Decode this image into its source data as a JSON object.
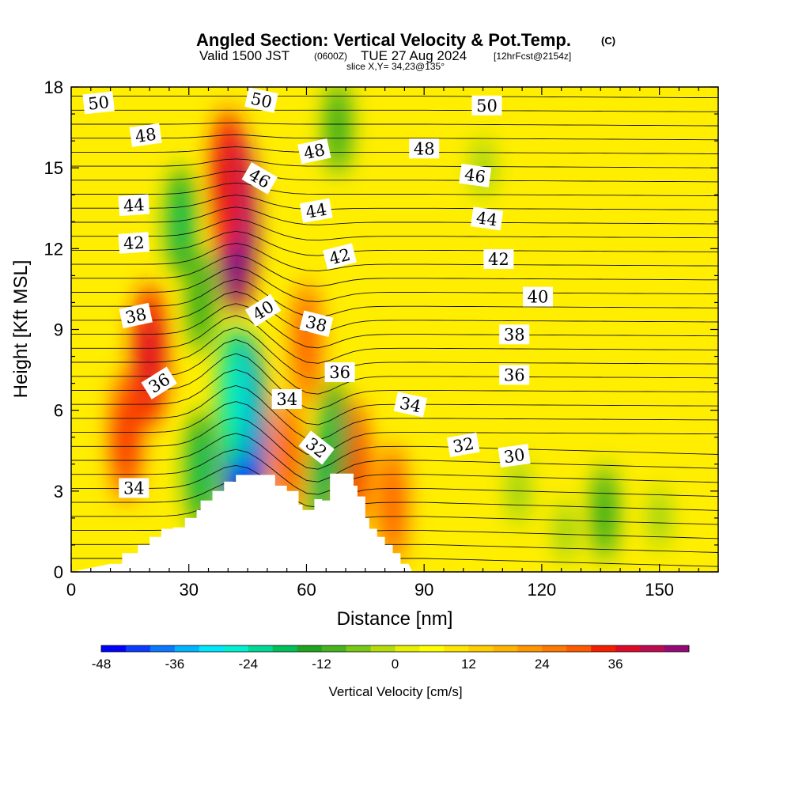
{
  "header": {
    "title": "Angled Section: Vertical Velocity & Pot.Temp.",
    "copyright": "(C)",
    "valid_prefix": "Valid 1500 JST",
    "valid_utc": "(0600Z)",
    "valid_date": "TUE 27 Aug 2024",
    "forecast": "[12hrFcst@2154z]",
    "slice": "slice X,Y= 34,23@135°"
  },
  "chart_data": {
    "type": "heatmap",
    "title": "Angled Section: Vertical Velocity & Pot.Temp.",
    "xlabel": "Distance [nm]",
    "ylabel": "Height [Kft MSL]",
    "xlim": [
      0,
      165
    ],
    "ylim": [
      0,
      18
    ],
    "x_ticks": [
      0,
      30,
      60,
      90,
      120,
      150
    ],
    "y_ticks": [
      0,
      3,
      6,
      9,
      12,
      15,
      18
    ],
    "colorbar": {
      "label": "Vertical Velocity [cm/s]",
      "ticks": [
        -48,
        -36,
        -24,
        -12,
        0,
        12,
        24,
        36
      ],
      "levels": [
        -48,
        -44,
        -40,
        -36,
        -32,
        -28,
        -24,
        -20,
        -16,
        -12,
        -8,
        -4,
        0,
        4,
        8,
        12,
        16,
        20,
        24,
        28,
        32,
        36,
        40,
        44
      ],
      "colors": [
        "#0000ff",
        "#0a3cff",
        "#0a78ff",
        "#00b4ff",
        "#00e6ff",
        "#00f0d2",
        "#00d896",
        "#00c05a",
        "#1ea51e",
        "#46b41e",
        "#78c814",
        "#b4dc0a",
        "#e6f000",
        "#ffff00",
        "#ffe600",
        "#ffcd00",
        "#ffb400",
        "#ff9600",
        "#ff7800",
        "#ff5a00",
        "#f51e00",
        "#dc0a28",
        "#be0a50",
        "#960a78",
        "#640a96"
      ]
    },
    "vertical_velocity_features": [
      {
        "x": 42,
        "y": 13,
        "value": 40
      },
      {
        "x": 40,
        "y": 14.5,
        "value": 28
      },
      {
        "x": 20,
        "y": 8,
        "value": 28
      },
      {
        "x": 14,
        "y": 5,
        "value": 24
      },
      {
        "x": 60,
        "y": 8.5,
        "value": 22
      },
      {
        "x": 72,
        "y": 4,
        "value": 24
      },
      {
        "x": 82,
        "y": 2.5,
        "value": 22
      },
      {
        "x": 55,
        "y": 4.2,
        "value": 22
      },
      {
        "x": 44,
        "y": 5,
        "value": -46
      },
      {
        "x": 42,
        "y": 6.5,
        "value": -28
      },
      {
        "x": 33,
        "y": 3.8,
        "value": -20
      },
      {
        "x": 67,
        "y": 5,
        "value": -20
      },
      {
        "x": 64,
        "y": 3.2,
        "value": -18
      },
      {
        "x": 28,
        "y": 13,
        "value": -18
      },
      {
        "x": 33,
        "y": 10,
        "value": -16
      },
      {
        "x": 68,
        "y": 16.5,
        "value": -14
      },
      {
        "x": 136,
        "y": 2.2,
        "value": -14
      },
      {
        "x": 114,
        "y": 3,
        "value": -8
      },
      {
        "x": 105,
        "y": 15,
        "value": -6
      },
      {
        "x": 150,
        "y": 2,
        "value": -6
      },
      {
        "x": 126,
        "y": 1.5,
        "value": -6
      }
    ],
    "contour_labels": [
      {
        "text": "50",
        "x": 7,
        "y": 17.4,
        "rot": -6
      },
      {
        "text": "48",
        "x": 19,
        "y": 16.2,
        "rot": -8
      },
      {
        "text": "44",
        "x": 16,
        "y": 13.6,
        "rot": -4
      },
      {
        "text": "42",
        "x": 16,
        "y": 12.2,
        "rot": -4
      },
      {
        "text": "38",
        "x": 16.5,
        "y": 9.5,
        "rot": -12
      },
      {
        "text": "36",
        "x": 22.5,
        "y": 7,
        "rot": -32
      },
      {
        "text": "34",
        "x": 16,
        "y": 3.1,
        "rot": 0
      },
      {
        "text": "50",
        "x": 48.5,
        "y": 17.5,
        "rot": 12
      },
      {
        "text": "46",
        "x": 48,
        "y": 14.6,
        "rot": 30
      },
      {
        "text": "40",
        "x": 49,
        "y": 9.7,
        "rot": -32
      },
      {
        "text": "48",
        "x": 62,
        "y": 15.6,
        "rot": -12
      },
      {
        "text": "44",
        "x": 62.5,
        "y": 13.4,
        "rot": -10
      },
      {
        "text": "42",
        "x": 68.5,
        "y": 11.7,
        "rot": -14
      },
      {
        "text": "38",
        "x": 62.5,
        "y": 9.2,
        "rot": 14
      },
      {
        "text": "36",
        "x": 68.5,
        "y": 7.4,
        "rot": 0
      },
      {
        "text": "34",
        "x": 55,
        "y": 6.4,
        "rot": 0
      },
      {
        "text": "32",
        "x": 62.5,
        "y": 4.6,
        "rot": 38
      },
      {
        "text": "34",
        "x": 86.5,
        "y": 6.2,
        "rot": 12
      },
      {
        "text": "48",
        "x": 90,
        "y": 15.7,
        "rot": 0
      },
      {
        "text": "50",
        "x": 106,
        "y": 17.3,
        "rot": 0
      },
      {
        "text": "46",
        "x": 103,
        "y": 14.7,
        "rot": 8
      },
      {
        "text": "44",
        "x": 106,
        "y": 13.1,
        "rot": 8
      },
      {
        "text": "42",
        "x": 109,
        "y": 11.6,
        "rot": 0
      },
      {
        "text": "40",
        "x": 119,
        "y": 10.2,
        "rot": 0
      },
      {
        "text": "38",
        "x": 113,
        "y": 8.8,
        "rot": 0
      },
      {
        "text": "36",
        "x": 113,
        "y": 7.3,
        "rot": 0
      },
      {
        "text": "32",
        "x": 100,
        "y": 4.7,
        "rot": -10
      },
      {
        "text": "30",
        "x": 113,
        "y": 4.3,
        "rot": -8
      }
    ],
    "terrain_profile": [
      [
        0,
        0
      ],
      [
        10,
        0.3
      ],
      [
        13,
        0.3
      ],
      [
        13,
        0.7
      ],
      [
        17,
        0.7
      ],
      [
        17,
        1.0
      ],
      [
        20,
        1.0
      ],
      [
        20,
        1.3
      ],
      [
        23,
        1.3
      ],
      [
        23,
        1.6
      ],
      [
        26,
        1.6
      ],
      [
        26,
        1.65
      ],
      [
        29,
        1.65
      ],
      [
        29,
        2.0
      ],
      [
        32,
        2.0
      ],
      [
        32,
        2.3
      ],
      [
        33,
        2.3
      ],
      [
        33,
        2.65
      ],
      [
        36,
        2.65
      ],
      [
        36,
        3.0
      ],
      [
        39,
        3.0
      ],
      [
        39,
        3.35
      ],
      [
        42,
        3.35
      ],
      [
        42,
        3.6
      ],
      [
        52,
        3.6
      ],
      [
        52,
        3.2
      ],
      [
        55,
        3.2
      ],
      [
        55,
        3.0
      ],
      [
        58,
        3.0
      ],
      [
        58,
        2.5
      ],
      [
        59,
        2.5
      ],
      [
        59,
        2.3
      ],
      [
        62,
        2.3
      ],
      [
        62,
        2.7
      ],
      [
        64,
        2.7
      ],
      [
        64,
        2.65
      ],
      [
        66,
        2.65
      ],
      [
        66,
        3.65
      ],
      [
        72,
        3.65
      ],
      [
        72,
        3.2
      ],
      [
        73,
        3.2
      ],
      [
        73,
        2.8
      ],
      [
        75,
        2.8
      ],
      [
        75,
        2.0
      ],
      [
        76,
        2.0
      ],
      [
        76,
        1.6
      ],
      [
        78,
        1.6
      ],
      [
        78,
        1.3
      ],
      [
        80,
        1.3
      ],
      [
        80,
        1.0
      ],
      [
        82,
        1.0
      ],
      [
        82,
        0.7
      ],
      [
        84,
        0.7
      ],
      [
        84,
        0.3
      ],
      [
        86,
        0.3
      ],
      [
        87,
        0
      ],
      [
        165,
        0
      ]
    ]
  }
}
